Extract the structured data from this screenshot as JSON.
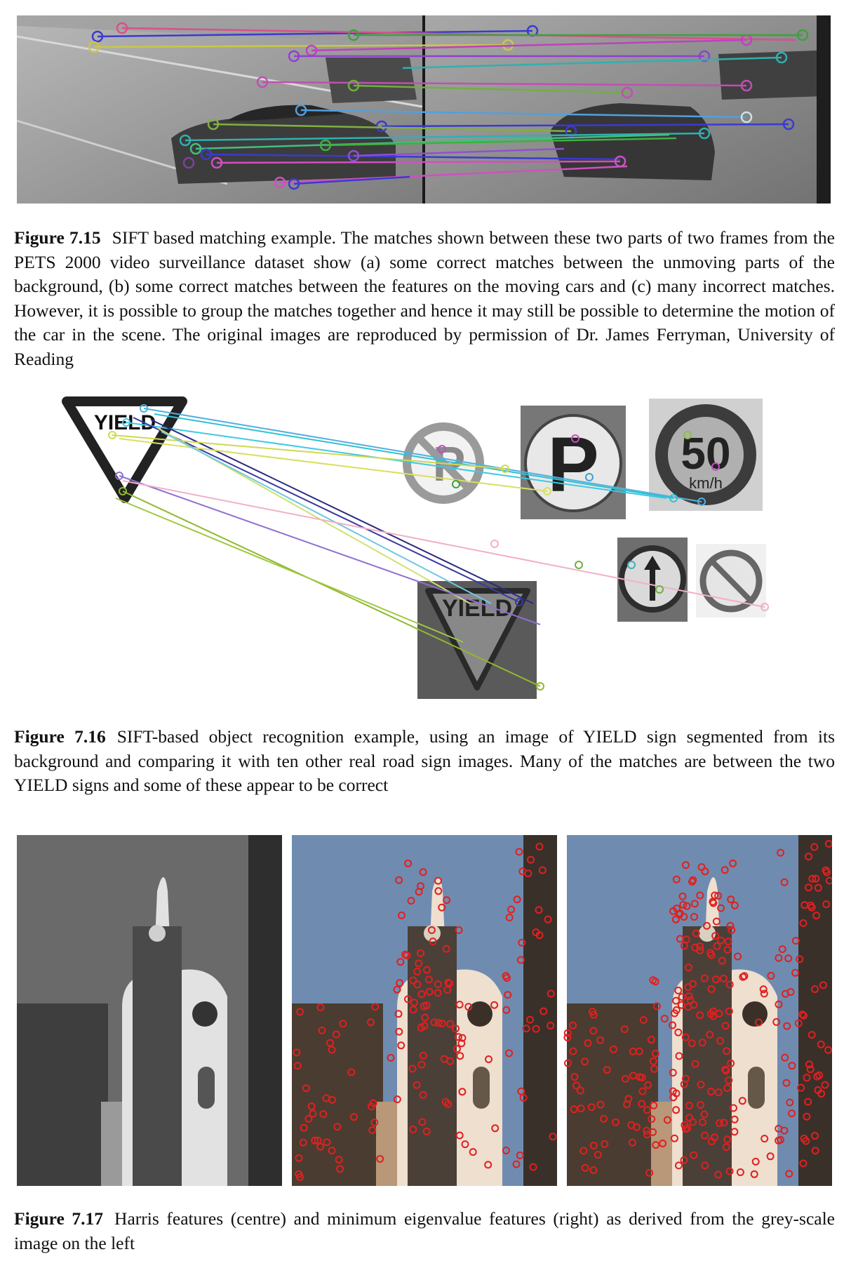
{
  "figures": [
    {
      "number": "Figure 7.15",
      "caption": "SIFT based matching example. The matches shown between these two parts of two frames from the PETS 2000 video surveillance dataset show (a) some correct matches between the unmoving parts of the background, (b) some correct matches between the features on the moving cars and (c) many incorrect matches. However, it is possible to group the matches together and hence it may still be possible to determine the motion of the car in the scene. The original images are reproduced by permission of Dr. James Ferryman, University of Reading"
    },
    {
      "number": "Figure 7.16",
      "caption": "SIFT-based object recognition example, using an image of YIELD sign segmented from its background and comparing it with ten other real road sign images. Many of the matches are between the two YIELD signs and some of these appear to be correct",
      "sign_text": {
        "yield": "YIELD",
        "speed": "50",
        "unit": "km/h",
        "parking": "P"
      }
    },
    {
      "number": "Figure 7.17",
      "caption": "Harris features (centre) and minimum eigenvalue features (right) as derived from the grey-scale image on the left"
    }
  ],
  "colors": {
    "feature_marker": "#e02020",
    "sky": "#6f8cb0",
    "road": "#8a8a8a"
  }
}
